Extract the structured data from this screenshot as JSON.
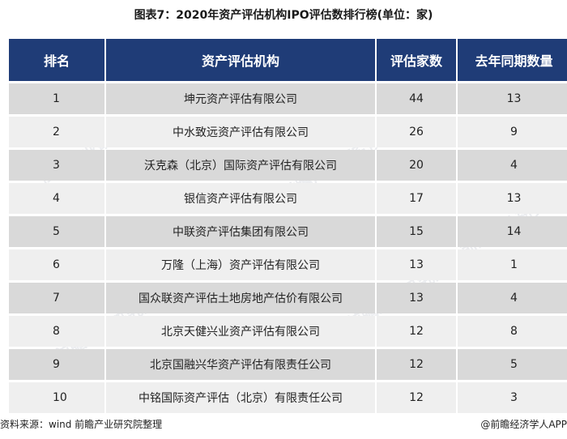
{
  "title": "图表7：2020年资产评估机构IPO评估数排行榜(单位：家)",
  "table": {
    "headers": [
      "排名",
      "资产评估机构",
      "评估家数",
      "去年同期数量"
    ],
    "rows": [
      {
        "rank": "1",
        "name": "坤元资产评估有限公司",
        "count": "44",
        "prev": "13"
      },
      {
        "rank": "2",
        "name": "中水致远资产评估有限公司",
        "count": "26",
        "prev": "9"
      },
      {
        "rank": "3",
        "name": "沃克森（北京）国际资产评估有限公司",
        "count": "20",
        "prev": "4"
      },
      {
        "rank": "4",
        "name": "银信资产评估有限公司",
        "count": "17",
        "prev": "13"
      },
      {
        "rank": "5",
        "name": "中联资产评估集团有限公司",
        "count": "15",
        "prev": "14"
      },
      {
        "rank": "6",
        "name": "万隆（上海）资产评估有限公司",
        "count": "13",
        "prev": "1"
      },
      {
        "rank": "7",
        "name": "国众联资产评估土地房地产估价有限公司",
        "count": "13",
        "prev": "4"
      },
      {
        "rank": "8",
        "name": "北京天健兴业资产评估有限公司",
        "count": "12",
        "prev": "8"
      },
      {
        "rank": "9",
        "name": "北京国融兴华资产评估有限责任公司",
        "count": "12",
        "prev": "5"
      },
      {
        "rank": "10",
        "name": "中铭国际资产评估（北京）有限责任公司",
        "count": "12",
        "prev": "3"
      }
    ]
  },
  "watermark": "前瞻产业研究院",
  "footer": {
    "source": "资料来源：wind 前瞻产业研究院整理",
    "credit": "@前瞻经济学人APP"
  },
  "colors": {
    "header_bg": "#1f3c77",
    "row_odd": "#d9d9d9",
    "row_even": "#efefef"
  }
}
